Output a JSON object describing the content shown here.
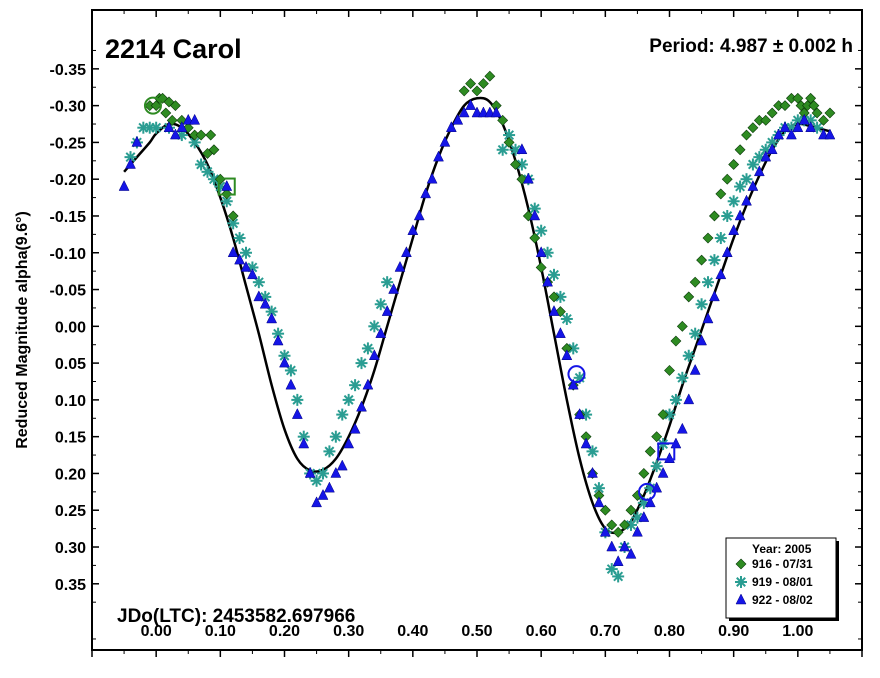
{
  "chart_data": {
    "type": "scatter",
    "title": "2214 Carol",
    "period_label": "Period: 4.987 ± 0.002 h",
    "epoch_label": "JDo(LTC): 2453582.697966",
    "ylabel": "Reduced Magnitude alpha(9.6°)",
    "xlabel": "",
    "xlim": [
      -0.1,
      1.1
    ],
    "ylim": [
      -0.43,
      0.44
    ],
    "y_inverted": true,
    "xticks": [
      "0.00",
      "0.10",
      "0.20",
      "0.30",
      "0.40",
      "0.50",
      "0.60",
      "0.70",
      "0.80",
      "0.90",
      "1.00"
    ],
    "yticks": [
      "-0.35",
      "-0.30",
      "-0.25",
      "-0.20",
      "-0.15",
      "-0.10",
      "-0.05",
      "0.00",
      "0.05",
      "0.10",
      "0.15",
      "0.20",
      "0.25",
      "0.30",
      "0.35"
    ],
    "grid": false,
    "legend": {
      "title": "Year: 2005",
      "position": "bottom-right",
      "entries": [
        {
          "label": "916 - 07/31",
          "color": "#2e8b22",
          "marker": "diamond"
        },
        {
          "label": "919 - 08/01",
          "color": "#2a9d92",
          "marker": "asterisk"
        },
        {
          "label": "922 - 08/02",
          "color": "#1515e6",
          "marker": "triangle"
        }
      ]
    },
    "fit_curve": {
      "color": "#000000",
      "x": [
        -0.05,
        -0.03,
        -0.01,
        0.0,
        0.02,
        0.04,
        0.06,
        0.08,
        0.1,
        0.12,
        0.14,
        0.16,
        0.18,
        0.2,
        0.22,
        0.24,
        0.26,
        0.28,
        0.3,
        0.32,
        0.34,
        0.36,
        0.38,
        0.4,
        0.42,
        0.44,
        0.46,
        0.48,
        0.5,
        0.52,
        0.54,
        0.56,
        0.58,
        0.6,
        0.62,
        0.64,
        0.66,
        0.68,
        0.7,
        0.72,
        0.74,
        0.76,
        0.78,
        0.8,
        0.82,
        0.84,
        0.86,
        0.88,
        0.9,
        0.92,
        0.94,
        0.96,
        0.98,
        1.0,
        1.02,
        1.05
      ],
      "y": [
        -0.21,
        -0.23,
        -0.25,
        -0.262,
        -0.275,
        -0.27,
        -0.25,
        -0.22,
        -0.175,
        -0.12,
        -0.055,
        0.01,
        0.08,
        0.14,
        0.18,
        0.196,
        0.195,
        0.18,
        0.15,
        0.11,
        0.06,
        0.0,
        -0.06,
        -0.12,
        -0.18,
        -0.23,
        -0.27,
        -0.3,
        -0.31,
        -0.305,
        -0.275,
        -0.225,
        -0.16,
        -0.08,
        0.01,
        0.1,
        0.18,
        0.24,
        0.275,
        0.28,
        0.265,
        0.23,
        0.185,
        0.135,
        0.08,
        0.03,
        -0.02,
        -0.07,
        -0.12,
        -0.165,
        -0.205,
        -0.24,
        -0.265,
        -0.275,
        -0.272,
        -0.265
      ]
    },
    "series": [
      {
        "name": "916 - 07/31",
        "marker": "diamond",
        "color": "#2e8b22",
        "x": [
          -0.01,
          0.0,
          0.005,
          0.01,
          0.015,
          0.02,
          0.025,
          0.03,
          0.04,
          0.05,
          0.06,
          0.07,
          0.08,
          0.085,
          0.09,
          0.1,
          0.11,
          0.12,
          0.48,
          0.49,
          0.5,
          0.51,
          0.52,
          0.53,
          0.54,
          0.55,
          0.56,
          0.57,
          0.58,
          0.59,
          0.6,
          0.61,
          0.62,
          0.63,
          0.64,
          0.65,
          0.66,
          0.67,
          0.68,
          0.69,
          0.7,
          0.71,
          0.72,
          0.73,
          0.74,
          0.75,
          0.76,
          0.77,
          0.78,
          0.79,
          0.8,
          0.81,
          0.82,
          0.83,
          0.84,
          0.85,
          0.86,
          0.87,
          0.88,
          0.89,
          0.9,
          0.91,
          0.92,
          0.93,
          0.94,
          0.95,
          0.96,
          0.97,
          0.98,
          0.99,
          1.0,
          1.005,
          1.01,
          1.015,
          1.02,
          1.025,
          1.03,
          1.04,
          1.05
        ],
        "y": [
          -0.3,
          -0.3,
          -0.31,
          -0.31,
          -0.29,
          -0.305,
          -0.28,
          -0.3,
          -0.28,
          -0.27,
          -0.26,
          -0.26,
          -0.235,
          -0.26,
          -0.24,
          -0.2,
          -0.18,
          -0.15,
          -0.32,
          -0.33,
          -0.32,
          -0.33,
          -0.34,
          -0.3,
          -0.28,
          -0.25,
          -0.22,
          -0.2,
          -0.15,
          -0.12,
          -0.08,
          -0.06,
          -0.04,
          -0.02,
          0.03,
          0.08,
          0.12,
          0.15,
          0.2,
          0.23,
          0.25,
          0.27,
          0.28,
          0.27,
          0.25,
          0.23,
          0.2,
          0.17,
          0.15,
          0.12,
          0.06,
          0.02,
          0.0,
          -0.04,
          -0.06,
          -0.09,
          -0.12,
          -0.15,
          -0.18,
          -0.2,
          -0.22,
          -0.24,
          -0.26,
          -0.27,
          -0.28,
          -0.28,
          -0.29,
          -0.3,
          -0.3,
          -0.31,
          -0.31,
          -0.3,
          -0.29,
          -0.3,
          -0.31,
          -0.3,
          -0.29,
          -0.28,
          -0.29
        ]
      },
      {
        "name": "919 - 08/01",
        "marker": "asterisk",
        "color": "#2a9d92",
        "x": [
          -0.04,
          -0.03,
          -0.02,
          -0.01,
          0.0,
          0.02,
          0.04,
          0.06,
          0.07,
          0.08,
          0.09,
          0.1,
          0.11,
          0.12,
          0.13,
          0.14,
          0.15,
          0.16,
          0.17,
          0.18,
          0.19,
          0.2,
          0.21,
          0.22,
          0.23,
          0.24,
          0.25,
          0.26,
          0.27,
          0.28,
          0.29,
          0.3,
          0.31,
          0.32,
          0.33,
          0.34,
          0.35,
          0.36,
          0.54,
          0.55,
          0.56,
          0.57,
          0.58,
          0.59,
          0.6,
          0.61,
          0.62,
          0.63,
          0.64,
          0.65,
          0.66,
          0.67,
          0.68,
          0.69,
          0.7,
          0.71,
          0.72,
          0.73,
          0.74,
          0.75,
          0.76,
          0.77,
          0.78,
          0.79,
          0.8,
          0.81,
          0.82,
          0.83,
          0.84,
          0.85,
          0.86,
          0.87,
          0.88,
          0.89,
          0.9,
          0.91,
          0.92,
          0.93,
          0.94,
          0.95,
          0.96,
          0.97,
          0.98,
          0.99,
          1.0,
          1.01,
          1.02,
          1.03
        ],
        "y": [
          -0.23,
          -0.25,
          -0.27,
          -0.27,
          -0.27,
          -0.27,
          -0.26,
          -0.25,
          -0.22,
          -0.21,
          -0.2,
          -0.19,
          -0.17,
          -0.14,
          -0.12,
          -0.1,
          -0.08,
          -0.06,
          -0.04,
          -0.02,
          0.01,
          0.04,
          0.06,
          0.1,
          0.15,
          0.2,
          0.21,
          0.2,
          0.17,
          0.15,
          0.12,
          0.1,
          0.08,
          0.05,
          0.03,
          0.0,
          -0.03,
          -0.06,
          -0.24,
          -0.26,
          -0.24,
          -0.22,
          -0.2,
          -0.16,
          -0.13,
          -0.1,
          -0.07,
          -0.04,
          -0.01,
          0.03,
          0.07,
          0.12,
          0.17,
          0.22,
          0.28,
          0.33,
          0.34,
          0.3,
          0.27,
          0.26,
          0.24,
          0.22,
          0.19,
          0.16,
          0.12,
          0.1,
          0.07,
          0.04,
          0.01,
          -0.03,
          -0.06,
          -0.09,
          -0.12,
          -0.15,
          -0.17,
          -0.19,
          -0.2,
          -0.22,
          -0.23,
          -0.24,
          -0.25,
          -0.26,
          -0.27,
          -0.27,
          -0.28,
          -0.28,
          -0.28,
          -0.27
        ]
      },
      {
        "name": "922 - 08/02",
        "marker": "triangle",
        "color": "#1515e6",
        "x": [
          -0.05,
          -0.04,
          -0.03,
          0.02,
          0.03,
          0.04,
          0.05,
          0.06,
          0.11,
          0.12,
          0.13,
          0.14,
          0.15,
          0.16,
          0.17,
          0.18,
          0.19,
          0.2,
          0.21,
          0.22,
          0.23,
          0.24,
          0.25,
          0.26,
          0.27,
          0.28,
          0.29,
          0.3,
          0.31,
          0.32,
          0.33,
          0.34,
          0.35,
          0.36,
          0.37,
          0.38,
          0.39,
          0.4,
          0.41,
          0.42,
          0.43,
          0.44,
          0.45,
          0.46,
          0.47,
          0.48,
          0.49,
          0.5,
          0.51,
          0.52,
          0.53,
          0.57,
          0.58,
          0.59,
          0.6,
          0.61,
          0.62,
          0.63,
          0.64,
          0.65,
          0.66,
          0.67,
          0.68,
          0.69,
          0.7,
          0.71,
          0.72,
          0.73,
          0.74,
          0.75,
          0.76,
          0.77,
          0.78,
          0.79,
          0.8,
          0.81,
          0.82,
          0.83,
          0.84,
          0.85,
          0.86,
          0.87,
          0.88,
          0.89,
          0.9,
          0.91,
          0.92,
          0.93,
          0.94,
          0.95,
          0.96,
          0.97,
          0.98,
          0.99,
          1.0,
          1.01,
          1.02,
          1.04,
          1.05
        ],
        "y": [
          -0.19,
          -0.22,
          -0.25,
          -0.27,
          -0.26,
          -0.27,
          -0.28,
          -0.28,
          -0.19,
          -0.1,
          -0.09,
          -0.08,
          -0.07,
          -0.04,
          -0.03,
          -0.01,
          0.02,
          0.05,
          0.08,
          0.12,
          0.16,
          0.2,
          0.24,
          0.23,
          0.22,
          0.2,
          0.19,
          0.16,
          0.14,
          0.11,
          0.08,
          0.04,
          0.01,
          -0.02,
          -0.05,
          -0.08,
          -0.1,
          -0.13,
          -0.15,
          -0.18,
          -0.2,
          -0.23,
          -0.25,
          -0.27,
          -0.28,
          -0.29,
          -0.3,
          -0.29,
          -0.29,
          -0.29,
          -0.29,
          -0.24,
          -0.2,
          -0.15,
          -0.1,
          -0.06,
          -0.02,
          0.01,
          0.04,
          0.08,
          0.12,
          0.16,
          0.2,
          0.24,
          0.28,
          0.3,
          0.32,
          0.3,
          0.31,
          0.28,
          0.26,
          0.24,
          0.22,
          0.2,
          0.18,
          0.16,
          0.14,
          0.1,
          0.06,
          0.02,
          -0.01,
          -0.04,
          -0.07,
          -0.1,
          -0.13,
          -0.15,
          -0.17,
          -0.19,
          -0.21,
          -0.23,
          -0.24,
          -0.26,
          -0.27,
          -0.26,
          -0.27,
          -0.28,
          -0.27,
          -0.26,
          -0.26
        ]
      }
    ],
    "highlight_markers": [
      {
        "shape": "circle",
        "color": "#2e8b22",
        "x": -0.005,
        "y": -0.3
      },
      {
        "shape": "square",
        "color": "#2e8b22",
        "x": 0.11,
        "y": -0.19
      },
      {
        "shape": "circle",
        "color": "#1515e6",
        "x": 0.655,
        "y": 0.065
      },
      {
        "shape": "circle",
        "color": "#1515e6",
        "x": 0.765,
        "y": 0.225
      },
      {
        "shape": "square",
        "color": "#1515e6",
        "x": 0.795,
        "y": 0.17
      }
    ]
  }
}
